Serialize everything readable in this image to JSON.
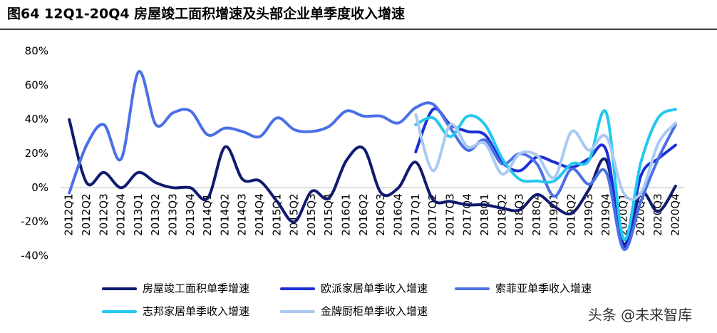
{
  "chart_data": {
    "type": "line",
    "title": "图64   12Q1-20Q4 房屋竣工面积增速及头部企业单季度收入增速",
    "watermark": "头条 @未来智库",
    "categories": [
      "2012Q1",
      "2012Q2",
      "2012Q3",
      "2012Q4",
      "2013Q1",
      "2013Q2",
      "2013Q3",
      "2013Q4",
      "2014Q1",
      "2014Q2",
      "2014Q3",
      "2014Q4",
      "2015Q1",
      "2015Q2",
      "2015Q3",
      "2015Q4",
      "2016Q1",
      "2016Q2",
      "2016Q3",
      "2016Q4",
      "2017Q1",
      "2017Q2",
      "2017Q3",
      "2017Q4",
      "2018Q1",
      "2018Q2",
      "2018Q3",
      "2018Q4",
      "2019Q1",
      "2019Q2",
      "2019Q3",
      "2019Q4",
      "2020Q1",
      "2020Q2",
      "2020Q3",
      "2020Q4"
    ],
    "series": [
      {
        "name": "房屋竣工面积单季增速",
        "color": "#101a6e",
        "values": [
          40,
          3,
          9,
          0,
          9,
          3,
          0,
          0,
          -6,
          24,
          5,
          4,
          -8,
          -20,
          -2,
          -6,
          16,
          23,
          -3,
          0,
          15,
          -7,
          -8,
          -10,
          -10,
          -12,
          -13,
          -4,
          -11,
          -15,
          -1,
          16,
          -33,
          -3,
          -14,
          1
        ]
      },
      {
        "name": "欧派家居单季收入增速",
        "color": "#1c2fd6",
        "values": [
          null,
          null,
          null,
          null,
          null,
          null,
          null,
          null,
          null,
          null,
          null,
          null,
          null,
          null,
          null,
          null,
          null,
          null,
          null,
          null,
          21,
          46,
          37,
          33,
          31,
          15,
          10,
          18,
          15,
          12,
          17,
          22,
          -35,
          7,
          17,
          25
        ]
      },
      {
        "name": "索菲亚单季收入增速",
        "color": "#4a70e6",
        "values": [
          -3,
          25,
          37,
          17,
          68,
          37,
          44,
          45,
          31,
          35,
          33,
          30,
          41,
          34,
          33,
          36,
          45,
          42,
          42,
          38,
          47,
          49,
          35,
          22,
          28,
          14,
          20,
          14,
          -5,
          11,
          2,
          9,
          -36,
          -8,
          17,
          37
        ]
      },
      {
        "name": "志邦家居单季收入增速",
        "color": "#22c8ee",
        "values": [
          null,
          null,
          null,
          null,
          null,
          null,
          null,
          null,
          null,
          null,
          null,
          null,
          null,
          null,
          null,
          null,
          null,
          null,
          null,
          null,
          37,
          41,
          30,
          42,
          37,
          17,
          5,
          4,
          4,
          14,
          16,
          44,
          -30,
          15,
          41,
          46
        ]
      },
      {
        "name": "金牌厨柜单季收入增速",
        "color": "#a9c9f2",
        "values": [
          null,
          null,
          null,
          null,
          null,
          null,
          null,
          null,
          null,
          null,
          null,
          null,
          null,
          null,
          null,
          null,
          null,
          null,
          null,
          null,
          43,
          10,
          37,
          24,
          26,
          8,
          20,
          19,
          6,
          33,
          22,
          30,
          -3,
          -3,
          26,
          38
        ]
      }
    ],
    "ylim": [
      -40,
      80
    ],
    "yticks": [
      {
        "value": -40,
        "label": "-40%"
      },
      {
        "value": -20,
        "label": "-20%"
      },
      {
        "value": 0,
        "label": "0%"
      },
      {
        "value": 20,
        "label": "20%"
      },
      {
        "value": 40,
        "label": "40%"
      },
      {
        "value": 60,
        "label": "60%"
      },
      {
        "value": 80,
        "label": "80%"
      }
    ]
  }
}
